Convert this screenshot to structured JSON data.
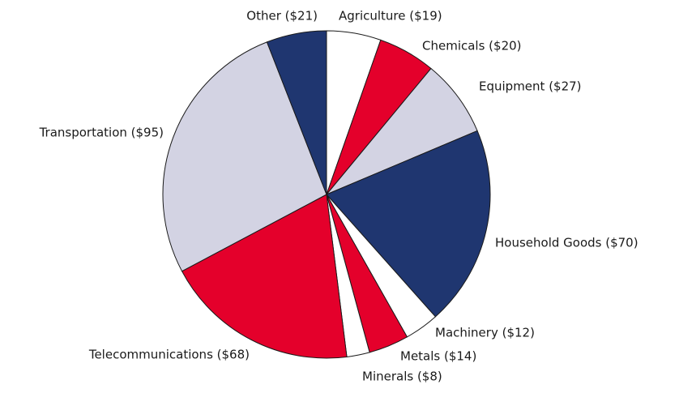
{
  "chart_data": {
    "type": "pie",
    "categories": [
      "Agriculture ($19)",
      "Chemicals ($20)",
      "Equipment ($27)",
      "Household Goods ($70)",
      "Machinery ($12)",
      "Metals ($14)",
      "Minerals ($8)",
      "Telecommunications ($68)",
      "Transportation ($95)",
      "Other ($21)"
    ],
    "values": [
      19,
      20,
      27,
      70,
      12,
      14,
      8,
      68,
      95,
      21
    ],
    "colors": [
      "#ffffff",
      "#e4002b",
      "#d3d3e3",
      "#1f3670",
      "#ffffff",
      "#e4002b",
      "#ffffff",
      "#e4002b",
      "#d3d3e3",
      "#1f3670"
    ]
  }
}
